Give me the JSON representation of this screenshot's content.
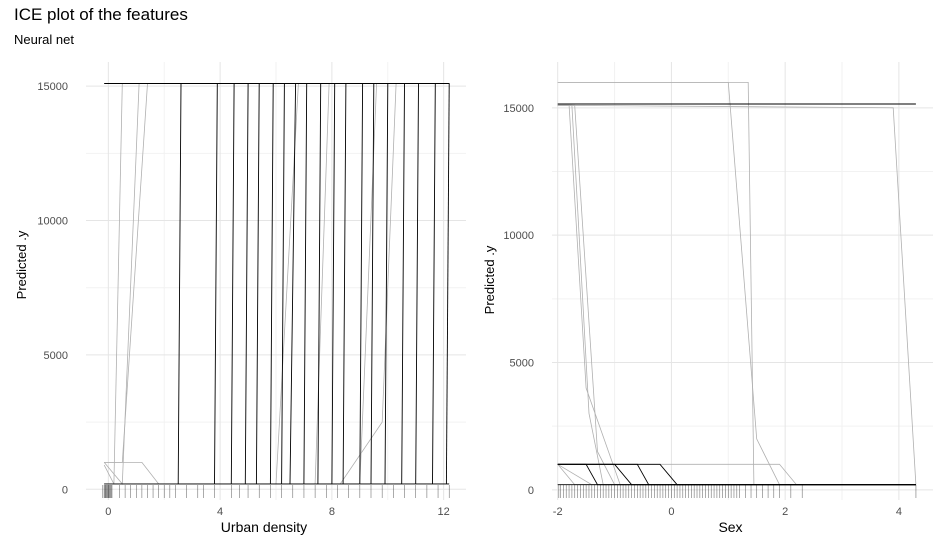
{
  "title": "ICE plot of the features",
  "subtitle": "Neural net",
  "colors": {
    "light_line": "#b0b0b0",
    "dark_line": "#000000",
    "grid_major": "#e5e5e5",
    "grid_minor": "#f2f2f2",
    "tick_text": "#4d4d4d",
    "rug": "#000000"
  },
  "chart_data": [
    {
      "type": "line",
      "feature": "urban-density",
      "xlabel": "Urban density",
      "ylabel": "Predicted .y",
      "xlim": [
        -0.8,
        12.8
      ],
      "ylim": [
        -400,
        15900
      ],
      "xticks": [
        0,
        4,
        8,
        12
      ],
      "yticks": [
        0,
        5000,
        10000,
        15000
      ],
      "grid": true,
      "rug": [
        -0.2,
        -0.15,
        -0.12,
        -0.1,
        -0.08,
        -0.05,
        -0.02,
        0.0,
        0.02,
        0.05,
        0.08,
        0.1,
        0.13,
        0.4,
        0.6,
        0.8,
        1.0,
        1.2,
        1.4,
        1.6,
        1.8,
        2.0,
        2.2,
        2.4,
        2.8,
        3.2,
        3.4,
        3.8,
        4.4,
        4.7,
        5.0,
        5.4,
        5.8,
        6.2,
        6.6,
        7.0,
        7.4,
        7.8,
        8.2,
        8.6,
        9.0,
        9.4,
        9.8,
        10.2,
        10.6,
        11.0,
        11.4,
        11.8,
        12.2
      ],
      "series_light": [
        {
          "x": [
            -0.15,
            0.5,
            1.4,
            12.2
          ],
          "y": [
            15100,
            15100,
            15100,
            15100
          ]
        },
        {
          "x": [
            -0.15,
            0.5,
            1.4,
            12.2
          ],
          "y": [
            1000,
            1000,
            15100,
            15100
          ]
        },
        {
          "x": [
            -0.15,
            0.2,
            0.5,
            12.2
          ],
          "y": [
            900,
            200,
            15100,
            15100
          ]
        },
        {
          "x": [
            -0.15,
            0.5,
            1.1,
            12.2
          ],
          "y": [
            1000,
            200,
            15100,
            15100
          ]
        },
        {
          "x": [
            -0.15,
            1.2,
            1.8,
            12.2
          ],
          "y": [
            1000,
            1000,
            200,
            200
          ]
        },
        {
          "x": [
            -0.15,
            6.0,
            6.8,
            12.2
          ],
          "y": [
            200,
            200,
            15100,
            15100
          ]
        },
        {
          "x": [
            -0.15,
            8.3,
            9.8,
            10.3,
            12.2
          ],
          "y": [
            200,
            200,
            2500,
            15100,
            15100
          ]
        },
        {
          "x": [
            -0.15,
            9.0,
            9.6,
            12.2
          ],
          "y": [
            200,
            200,
            15100,
            15100
          ]
        },
        {
          "x": [
            -0.15,
            7.4,
            7.9,
            12.2
          ],
          "y": [
            200,
            200,
            15100,
            15100
          ]
        }
      ],
      "series_dark": [
        {
          "x": [
            -0.15,
            12.2
          ],
          "y": [
            200,
            200
          ]
        },
        {
          "x": [
            -0.15,
            12.2
          ],
          "y": [
            15100,
            15100
          ]
        },
        {
          "x": [
            2.5,
            2.6,
            12.2
          ],
          "y": [
            200,
            15100,
            15100
          ]
        },
        {
          "x": [
            3.8,
            3.9,
            12.2
          ],
          "y": [
            200,
            15100,
            15100
          ]
        },
        {
          "x": [
            4.4,
            4.5,
            12.2
          ],
          "y": [
            200,
            15100,
            15100
          ]
        },
        {
          "x": [
            4.9,
            5.0,
            12.2
          ],
          "y": [
            200,
            15100,
            15100
          ]
        },
        {
          "x": [
            5.3,
            5.4,
            12.2
          ],
          "y": [
            200,
            15100,
            15100
          ]
        },
        {
          "x": [
            5.8,
            5.9,
            12.2
          ],
          "y": [
            200,
            15100,
            15100
          ]
        },
        {
          "x": [
            6.2,
            6.3,
            12.2
          ],
          "y": [
            200,
            15100,
            15100
          ]
        },
        {
          "x": [
            6.5,
            6.7,
            12.2
          ],
          "y": [
            200,
            15100,
            15100
          ]
        },
        {
          "x": [
            7.0,
            7.1,
            12.2
          ],
          "y": [
            200,
            15100,
            15100
          ]
        },
        {
          "x": [
            7.5,
            7.6,
            12.2
          ],
          "y": [
            200,
            15100,
            15100
          ]
        },
        {
          "x": [
            8.0,
            8.1,
            12.2
          ],
          "y": [
            200,
            15100,
            15100
          ]
        },
        {
          "x": [
            8.4,
            8.5,
            12.2
          ],
          "y": [
            200,
            15100,
            15100
          ]
        },
        {
          "x": [
            9.0,
            9.1,
            12.2
          ],
          "y": [
            200,
            15100,
            15100
          ]
        },
        {
          "x": [
            9.4,
            9.5,
            12.2
          ],
          "y": [
            200,
            15100,
            15100
          ]
        },
        {
          "x": [
            9.9,
            10.0,
            12.2
          ],
          "y": [
            200,
            15100,
            15100
          ]
        },
        {
          "x": [
            10.5,
            10.6,
            12.2
          ],
          "y": [
            200,
            15100,
            15100
          ]
        },
        {
          "x": [
            11.0,
            11.1,
            12.2
          ],
          "y": [
            200,
            15100,
            15100
          ]
        },
        {
          "x": [
            11.6,
            11.7,
            12.2
          ],
          "y": [
            200,
            15100,
            15100
          ]
        },
        {
          "x": [
            12.1,
            12.2
          ],
          "y": [
            200,
            15100
          ]
        }
      ]
    },
    {
      "type": "line",
      "feature": "sex",
      "xlabel": "Sex",
      "ylabel": "Predicted .y",
      "xlim": [
        -2.1,
        4.6
      ],
      "ylim": [
        -400,
        16800
      ],
      "xticks": [
        -2,
        0,
        2,
        4
      ],
      "yticks": [
        0,
        5000,
        10000,
        15000
      ],
      "grid": true,
      "rug": [
        -1.98,
        -1.95,
        -1.9,
        -1.85,
        -1.8,
        -1.75,
        -1.7,
        -1.65,
        -1.6,
        -1.55,
        -1.5,
        -1.45,
        -1.4,
        -1.35,
        -1.3,
        -1.25,
        -1.2,
        -1.15,
        -1.1,
        -1.05,
        -1.0,
        -0.95,
        -0.9,
        -0.85,
        -0.8,
        -0.75,
        -0.7,
        -0.65,
        -0.6,
        -0.55,
        -0.5,
        -0.45,
        -0.4,
        -0.35,
        -0.3,
        -0.25,
        -0.2,
        -0.15,
        -0.1,
        -0.05,
        0.0,
        0.05,
        0.1,
        0.15,
        0.2,
        0.25,
        0.3,
        0.35,
        0.4,
        0.45,
        0.5,
        0.55,
        0.6,
        0.65,
        0.7,
        0.75,
        0.8,
        0.85,
        0.9,
        0.95,
        1.0,
        1.05,
        1.1,
        1.15,
        1.2,
        1.3,
        1.4,
        1.5,
        1.6,
        1.7,
        1.8,
        1.9,
        2.1,
        2.3,
        4.3
      ],
      "series_light": [
        {
          "x": [
            -2.0,
            -1.65,
            1.35,
            1.45,
            4.3
          ],
          "y": [
            16000,
            16000,
            16000,
            200,
            200
          ]
        },
        {
          "x": [
            -2.0,
            3.9,
            4.3
          ],
          "y": [
            15100,
            15000,
            200
          ]
        },
        {
          "x": [
            -2.0,
            -1.75,
            -1.45,
            -1.2,
            4.3
          ],
          "y": [
            15100,
            15100,
            3000,
            200,
            200
          ]
        },
        {
          "x": [
            -2.0,
            -1.7,
            -1.3,
            -1.0,
            4.3
          ],
          "y": [
            15100,
            15100,
            1500,
            200,
            200
          ]
        },
        {
          "x": [
            -2.0,
            -1.8,
            -1.5,
            -0.9,
            4.3
          ],
          "y": [
            15100,
            15100,
            4000,
            200,
            200
          ]
        },
        {
          "x": [
            -2.0,
            1.0,
            1.5,
            1.9,
            4.3
          ],
          "y": [
            16000,
            16000,
            2000,
            200,
            200
          ]
        },
        {
          "x": [
            -2.0,
            1.9,
            2.2,
            4.3
          ],
          "y": [
            1000,
            1000,
            200,
            200
          ]
        },
        {
          "x": [
            -2.0,
            -1.7,
            4.3
          ],
          "y": [
            1000,
            200,
            200
          ]
        },
        {
          "x": [
            -2.0,
            -1.4,
            4.3
          ],
          "y": [
            1000,
            200,
            200
          ]
        }
      ],
      "series_dark": [
        {
          "x": [
            -2.0,
            4.3
          ],
          "y": [
            200,
            200
          ]
        },
        {
          "x": [
            -2.0,
            4.3
          ],
          "y": [
            15150,
            15150
          ]
        },
        {
          "x": [
            -2.0,
            -0.2,
            0.1,
            4.3
          ],
          "y": [
            1000,
            1000,
            200,
            200
          ]
        },
        {
          "x": [
            -2.0,
            -0.6,
            -0.4,
            4.3
          ],
          "y": [
            1000,
            1000,
            200,
            200
          ]
        },
        {
          "x": [
            -2.0,
            -1.0,
            -0.7,
            4.3
          ],
          "y": [
            1000,
            1000,
            200,
            200
          ]
        },
        {
          "x": [
            -2.0,
            -1.5,
            -1.3,
            4.3
          ],
          "y": [
            1000,
            1000,
            200,
            200
          ]
        }
      ]
    }
  ]
}
